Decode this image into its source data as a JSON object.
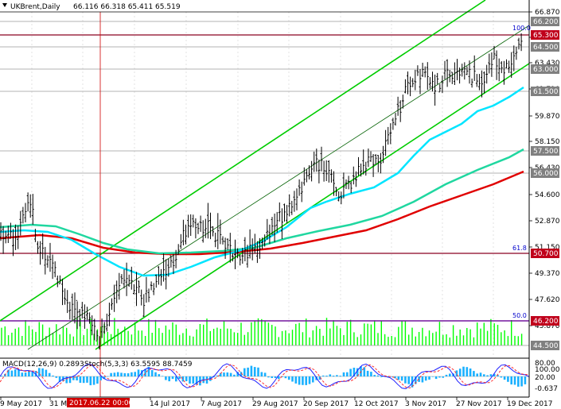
{
  "header": {
    "symbol": "UKBrent,Daily",
    "ohlc": "66.116 66.318 65.411 65.519"
  },
  "oscillators": {
    "macd_label": "MACD(12,26,9) 0.2893",
    "stoch_label": "Stoch(5,3,3) 63.5595 88.7459",
    "ticks": [
      "80.00",
      "100.00",
      "20.00",
      "-0.637"
    ]
  },
  "price_ticks": [
    "66.870",
    "65.150",
    "63.430",
    "61.710",
    "59.870",
    "58.150",
    "56.430",
    "54.600",
    "52.870",
    "51.150",
    "49.370",
    "47.620",
    "45.870"
  ],
  "levels": [
    {
      "label": "66.200",
      "color": "#808080"
    },
    {
      "label": "65.300",
      "color": "#c0001b"
    },
    {
      "label": "64.500",
      "color": "#808080"
    },
    {
      "label": "63.000",
      "color": "#808080"
    },
    {
      "label": "61.500",
      "color": "#808080"
    },
    {
      "label": "57.500",
      "color": "#808080"
    },
    {
      "label": "56.000",
      "color": "#808080"
    },
    {
      "label": "50.700",
      "color": "#c0001b"
    },
    {
      "label": "46.200",
      "color": "#c0001b"
    },
    {
      "label": "44.500",
      "color": "#808080"
    }
  ],
  "fib_labels": [
    "100.0",
    "61.8",
    "50.0"
  ],
  "date_ticks": [
    "9 May 2017",
    "31 May 2017",
    "14 Jul 2017",
    "7 Aug 2017",
    "29 Aug 2017",
    "20 Sep 2017",
    "12 Oct 2017",
    "3 Nov 2017",
    "27 Nov 2017",
    "19 Dec 2017"
  ],
  "crosshair_date": "2017.06.22 00:00",
  "colors": {
    "price_bars": "#000000",
    "ma_fast": "#00e5ff",
    "ma_mid": "#20d7a0",
    "ma_slow": "#e00000",
    "channel": "#00cc00",
    "histogram": "#00ff00",
    "macd_hist": "#1ab0ff",
    "stoch_main": "#2020ff",
    "stoch_signal": "#ff3030"
  },
  "chart_data": {
    "type": "candlestick",
    "series": [
      {
        "name": "UKBrent,Daily",
        "x": [
          "9 May 2017",
          "31 May 2017",
          "2017.06.22",
          "14 Jul 2017",
          "7 Aug 2017",
          "29 Aug 2017",
          "20 Sep 2017",
          "12 Oct 2017",
          "3 Nov 2017",
          "27 Nov 2017",
          "19 Dec 2017"
        ],
        "y": [
          52.5,
          51.6,
          44.8,
          48.6,
          52.3,
          50.9,
          56.7,
          57.8,
          62.4,
          63.4,
          65.5
        ]
      }
    ]
  }
}
